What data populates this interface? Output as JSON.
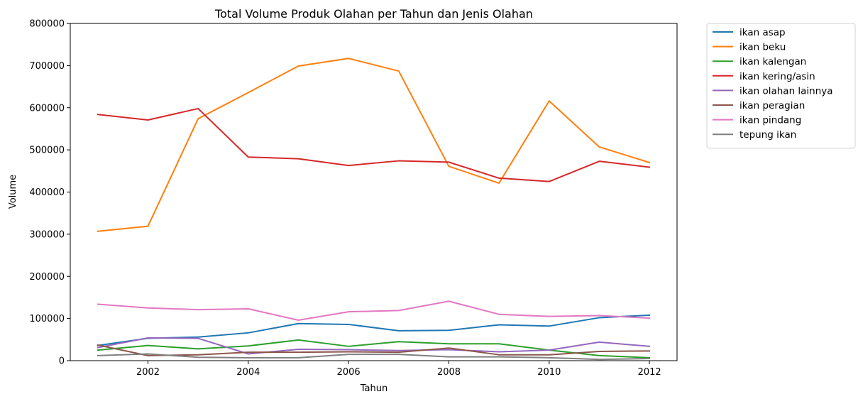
{
  "chart_data": {
    "type": "line",
    "title": "Total Volume Produk Olahan per Tahun dan Jenis Olahan",
    "xlabel": "Tahun",
    "ylabel": "Volume",
    "x": [
      2001,
      2002,
      2003,
      2004,
      2005,
      2006,
      2007,
      2008,
      2009,
      2010,
      2011,
      2012
    ],
    "xlim": [
      2000.45,
      2012.55
    ],
    "ylim": [
      0,
      800000
    ],
    "xticks": [
      "2002",
      "2004",
      "2006",
      "2008",
      "2010",
      "2012"
    ],
    "yticks": [
      "0",
      "100000",
      "200000",
      "300000",
      "400000",
      "500000",
      "600000",
      "700000",
      "800000"
    ],
    "grid": false,
    "legend_position": "outside-right-top",
    "series": [
      {
        "name": "ikan asap",
        "color": "#1f77b4",
        "values": [
          36000,
          53000,
          56000,
          66000,
          88000,
          86000,
          71000,
          72000,
          85000,
          82000,
          102000,
          108000
        ]
      },
      {
        "name": "ikan beku",
        "color": "#ff7f0e",
        "values": [
          307000,
          319000,
          574000,
          636000,
          699000,
          717000,
          687000,
          461000,
          421000,
          616000,
          507000,
          470000
        ]
      },
      {
        "name": "ikan kalengan",
        "color": "#2ca02c",
        "values": [
          25000,
          36000,
          28000,
          35000,
          49000,
          34000,
          45000,
          40000,
          40000,
          25000,
          12000,
          7000
        ]
      },
      {
        "name": "ikan kering/asin",
        "color": "#d62728",
        "values": [
          584000,
          571000,
          598000,
          483000,
          479000,
          463000,
          474000,
          471000,
          433000,
          425000,
          473000,
          459000
        ]
      },
      {
        "name": "ikan olahan lainnya",
        "color": "#9467bd",
        "values": [
          31000,
          54000,
          53000,
          16000,
          27000,
          26000,
          24000,
          26000,
          21000,
          25000,
          44000,
          34000
        ]
      },
      {
        "name": "ikan peragian",
        "color": "#8c564b",
        "values": [
          37000,
          12000,
          14000,
          20000,
          20000,
          21000,
          20000,
          30000,
          14000,
          14000,
          22000,
          23000
        ]
      },
      {
        "name": "ikan pindang",
        "color": "#e377c2",
        "values": [
          134000,
          125000,
          121000,
          123000,
          96000,
          116000,
          119000,
          141000,
          110000,
          105000,
          107000,
          101000
        ]
      },
      {
        "name": "tepung ikan",
        "color": "#7f7f7f",
        "values": [
          12000,
          16000,
          8000,
          7000,
          7000,
          15000,
          15000,
          9000,
          9000,
          7000,
          3000,
          5000
        ]
      }
    ]
  }
}
